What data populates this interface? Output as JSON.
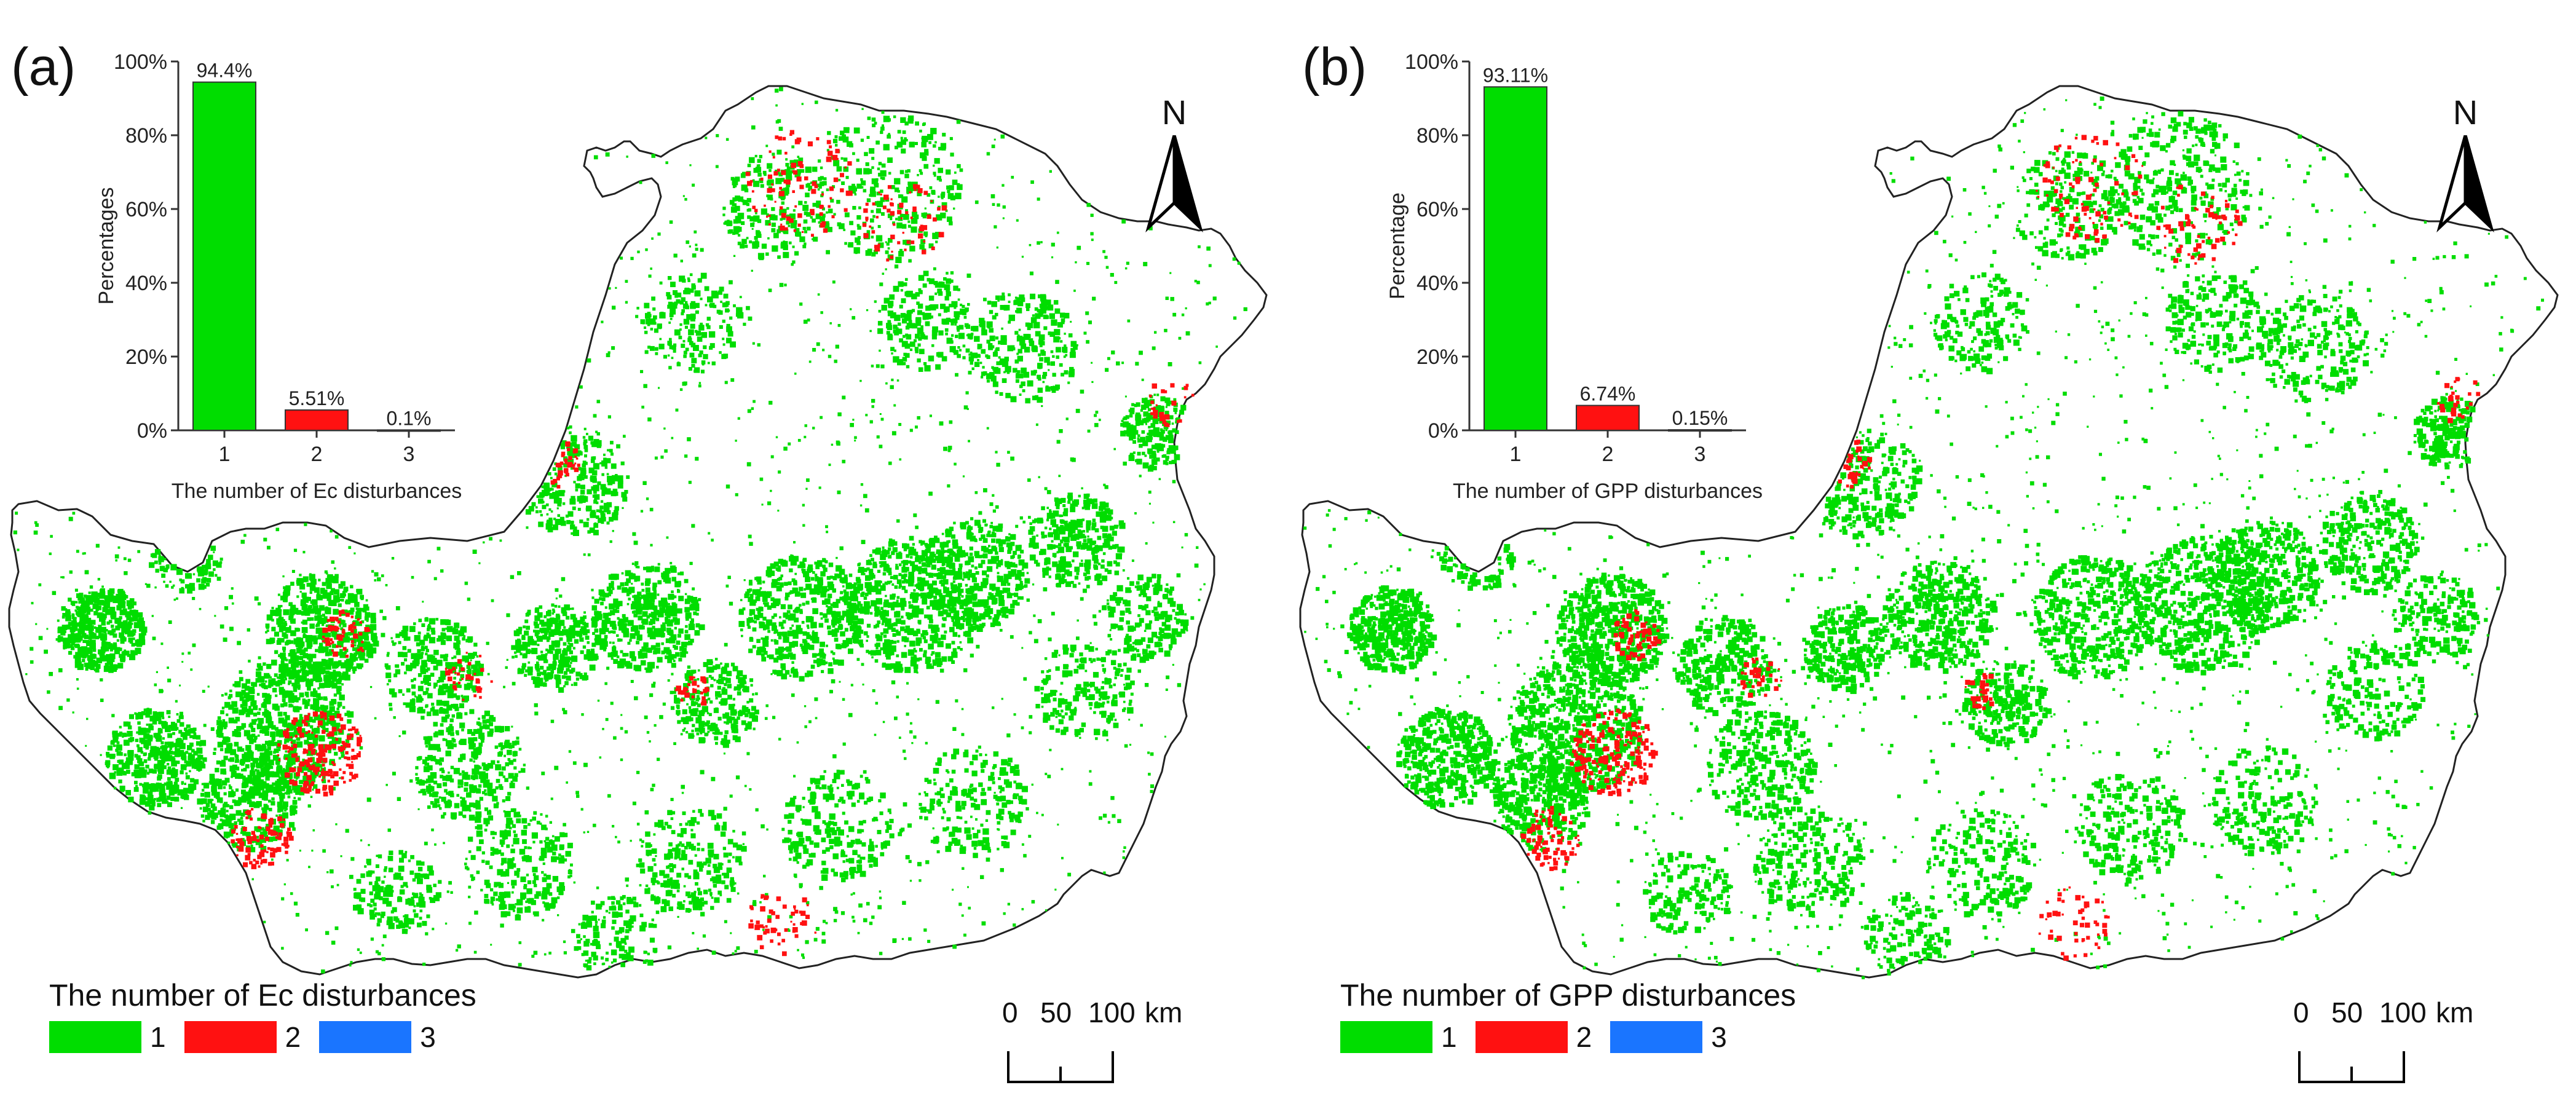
{
  "panels": [
    {
      "id": "a",
      "label": "(a)",
      "north_label": "N",
      "legend": {
        "title": "The number of Ec disturbances",
        "items": [
          {
            "label": "1",
            "color": "#00dd00"
          },
          {
            "label": "2",
            "color": "#ff1111"
          },
          {
            "label": "3",
            "color": "#1a75ff"
          }
        ]
      },
      "scalebar": {
        "labels": [
          "0",
          "50",
          "100"
        ],
        "unit": "km"
      },
      "chart_data": {
        "type": "bar",
        "categories": [
          "1",
          "2",
          "3"
        ],
        "values": [
          94.4,
          5.51,
          0.1
        ],
        "data_labels": [
          "94.4%",
          "5.51%",
          "0.1%"
        ],
        "colors": [
          "#00dd00",
          "#ff1111",
          "#1a75ff"
        ],
        "xlabel": "The number of Ec disturbances",
        "ylabel": "Percentages",
        "ylim": [
          0,
          100
        ],
        "yticks": [
          "0%",
          "20%",
          "40%",
          "60%",
          "80%",
          "100%"
        ]
      }
    },
    {
      "id": "b",
      "label": "(b)",
      "north_label": "N",
      "legend": {
        "title": "The number of GPP disturbances",
        "items": [
          {
            "label": "1",
            "color": "#00dd00"
          },
          {
            "label": "2",
            "color": "#ff1111"
          },
          {
            "label": "3",
            "color": "#1a75ff"
          }
        ]
      },
      "scalebar": {
        "labels": [
          "0",
          "50",
          "100"
        ],
        "unit": "km"
      },
      "chart_data": {
        "type": "bar",
        "categories": [
          "1",
          "2",
          "3"
        ],
        "values": [
          93.11,
          6.74,
          0.15
        ],
        "data_labels": [
          "93.11%",
          "6.74%",
          "0.15%"
        ],
        "colors": [
          "#00dd00",
          "#ff1111",
          "#1a75ff"
        ],
        "xlabel": "The number of GPP disturbances",
        "ylabel": "Percentage",
        "ylim": [
          0,
          100
        ],
        "yticks": [
          "0%",
          "20%",
          "40%",
          "60%",
          "80%",
          "100%"
        ]
      }
    }
  ],
  "colors": {
    "outline": "#222222",
    "background": "#ffffff"
  }
}
